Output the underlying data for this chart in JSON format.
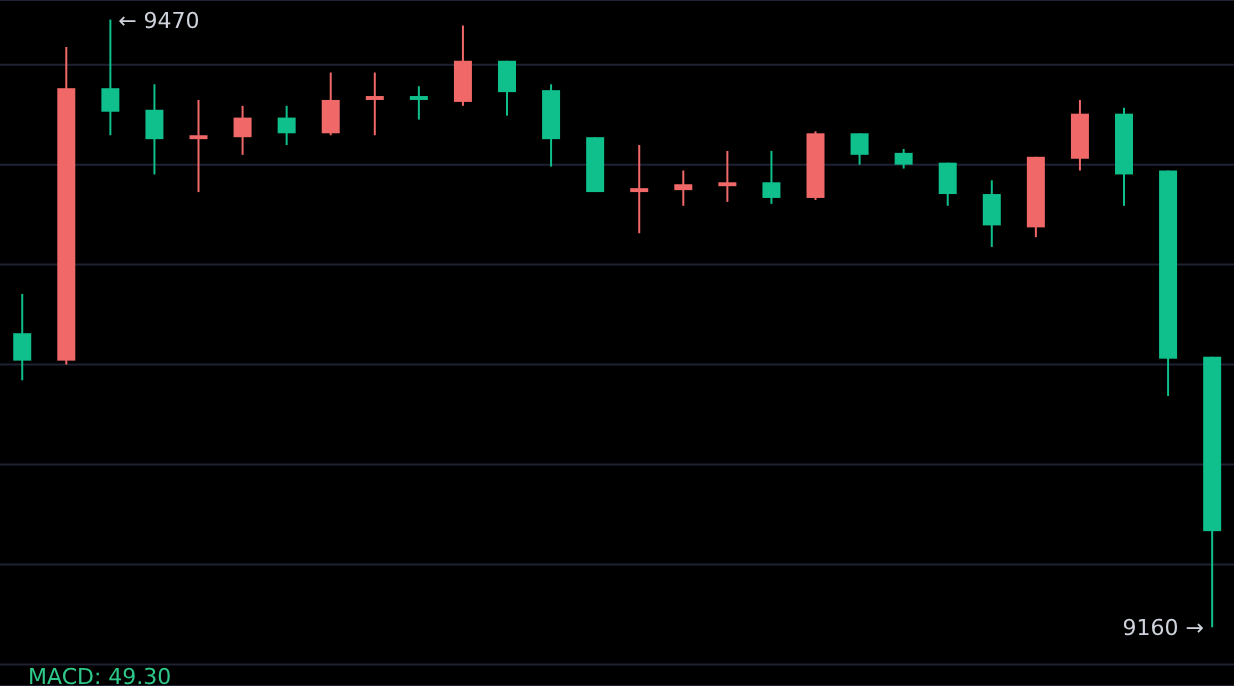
{
  "chart_data": {
    "type": "candlestick",
    "categories": [
      null,
      null,
      null,
      null,
      null,
      null,
      null,
      null,
      null,
      null,
      null,
      null,
      null,
      null,
      null,
      null,
      null,
      null,
      null,
      null,
      null,
      null,
      null,
      null,
      null,
      null,
      null,
      null
    ],
    "ohlc": [
      [
        9310,
        9330,
        9286,
        9296
      ],
      [
        9296,
        9456,
        9294,
        9435
      ],
      [
        9435,
        9470,
        9411,
        9423
      ],
      [
        9424,
        9437,
        9391,
        9409
      ],
      [
        9409,
        9429,
        9382,
        9411
      ],
      [
        9410,
        9426,
        9401,
        9420
      ],
      [
        9420,
        9426,
        9406,
        9412
      ],
      [
        9412,
        9443,
        9411,
        9429
      ],
      [
        9429,
        9443,
        9411,
        9431
      ],
      [
        9431,
        9436,
        9419,
        9429
      ],
      [
        9428,
        9467,
        9426,
        9449
      ],
      [
        9449,
        9449,
        9421,
        9433
      ],
      [
        9434,
        9437,
        9395,
        9409
      ],
      [
        9410,
        9410,
        9382,
        9382
      ],
      [
        9382,
        9406,
        9361,
        9384
      ],
      [
        9383,
        9393,
        9375,
        9386
      ],
      [
        9385,
        9403,
        9377,
        9387
      ],
      [
        9387,
        9403,
        9376,
        9379
      ],
      [
        9379,
        9413,
        9378,
        9412
      ],
      [
        9412,
        9412,
        9396,
        9401
      ],
      [
        9402,
        9404,
        9394,
        9396
      ],
      [
        9397,
        9397,
        9375,
        9381
      ],
      [
        9381,
        9388,
        9354,
        9365
      ],
      [
        9364,
        9400,
        9359,
        9400
      ],
      [
        9399,
        9429,
        9393,
        9422
      ],
      [
        9422,
        9425,
        9375,
        9391
      ],
      [
        9393,
        9393,
        9278,
        9297
      ],
      [
        9298,
        9298,
        9160,
        9209
      ]
    ],
    "colors": [
      "#0fbf8c",
      "#f06868",
      "#0fbf8c",
      "#0fbf8c",
      "#f06868",
      "#f06868",
      "#0fbf8c",
      "#f06868",
      "#f06868",
      "#0fbf8c",
      "#f06868",
      "#0fbf8c",
      "#0fbf8c",
      "#0fbf8c",
      "#f06868",
      "#f06868",
      "#f06868",
      "#0fbf8c",
      "#f06868",
      "#0fbf8c",
      "#0fbf8c",
      "#0fbf8c",
      "#0fbf8c",
      "#f06868",
      "#f06868",
      "#0fbf8c",
      "#0fbf8c",
      "#0fbf8c"
    ],
    "ylim": [
      9130,
      9480
    ],
    "yticks": [
      {
        "value": 9447,
        "label": null
      },
      {
        "value": 9396,
        "label": null
      },
      {
        "value": 9345,
        "label": null
      },
      {
        "value": 9294,
        "label": null
      },
      {
        "value": 9243,
        "label": null
      },
      {
        "value": 9192,
        "label": null
      },
      {
        "value": 9141,
        "label": null
      }
    ],
    "tick_labels": false,
    "grid": "y",
    "annotations": [
      "← 9470",
      "9160 →",
      "MACD: 49.30"
    ]
  }
}
